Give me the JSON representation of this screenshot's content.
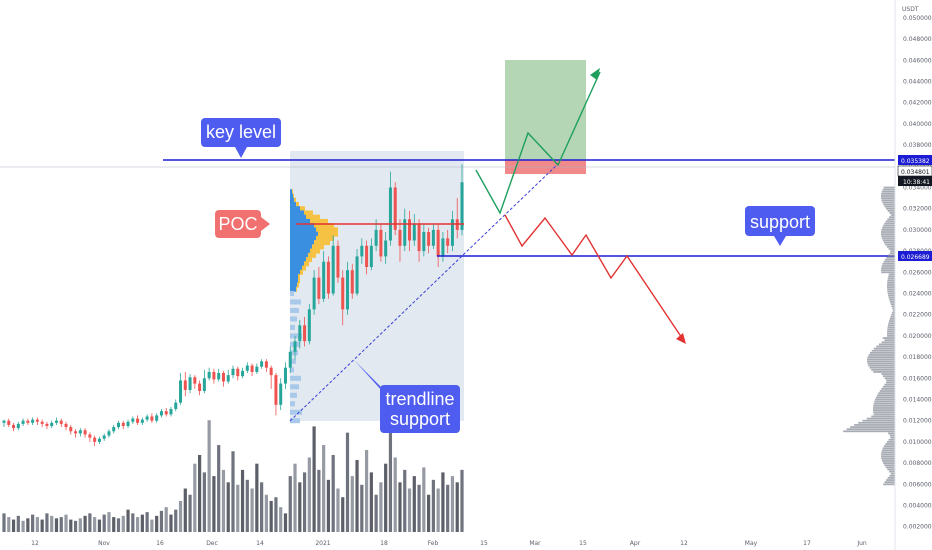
{
  "chart_data": {
    "type": "candlestick",
    "quote_currency": "USDT",
    "x_ticks": [
      "12",
      "Nov",
      "16",
      "Dec",
      "14",
      "2021",
      "18",
      "Feb",
      "15",
      "Mar",
      "15",
      "Apr",
      "12",
      "May",
      "17",
      "Jun"
    ],
    "y_ticks": [
      "0.050000",
      "0.048000",
      "0.046000",
      "0.044000",
      "0.042000",
      "0.040000",
      "0.038000",
      "0.036000",
      "0.034000",
      "0.032000",
      "0.030000",
      "0.028000",
      "0.026000",
      "0.024000",
      "0.022000",
      "0.020000",
      "0.018000",
      "0.016000",
      "0.014000",
      "0.012000",
      "0.010000",
      "0.008000",
      "0.006000",
      "0.004000",
      "0.002000"
    ],
    "ylim": [
      0.0015,
      0.0515
    ],
    "price_labels": {
      "key_level": "0.035382",
      "current_price": "0.034801",
      "countdown": "10:38:41",
      "support": "0.026689"
    },
    "levels": {
      "key_level": 0.035382,
      "support": 0.026689,
      "poc": 0.0294
    },
    "annotations": {
      "key_level": "key level",
      "poc": "POC",
      "support": "support",
      "trendline_line1": "trendline",
      "trendline_line2": "support"
    },
    "candles": [
      [
        0.0118,
        0.012,
        0.0114,
        0.0121
      ],
      [
        0.012,
        0.0116,
        0.0114,
        0.0122
      ],
      [
        0.0116,
        0.0113,
        0.011,
        0.0118
      ],
      [
        0.0113,
        0.0117,
        0.0111,
        0.0119
      ],
      [
        0.0117,
        0.012,
        0.0115,
        0.0122
      ],
      [
        0.012,
        0.0118,
        0.0116,
        0.0122
      ],
      [
        0.0118,
        0.0121,
        0.0116,
        0.0123
      ],
      [
        0.0121,
        0.0119,
        0.0116,
        0.0123
      ],
      [
        0.0119,
        0.0117,
        0.0114,
        0.0121
      ],
      [
        0.0117,
        0.0115,
        0.0112,
        0.0119
      ],
      [
        0.0115,
        0.0118,
        0.0113,
        0.012
      ],
      [
        0.0118,
        0.012,
        0.0116,
        0.0123
      ],
      [
        0.012,
        0.0117,
        0.0114,
        0.0122
      ],
      [
        0.0117,
        0.0114,
        0.0111,
        0.0119
      ],
      [
        0.0114,
        0.011,
        0.0107,
        0.0116
      ],
      [
        0.011,
        0.0108,
        0.0104,
        0.0112
      ],
      [
        0.0108,
        0.0111,
        0.0105,
        0.0113
      ],
      [
        0.0111,
        0.0107,
        0.0104,
        0.0113
      ],
      [
        0.0107,
        0.0104,
        0.01,
        0.0109
      ],
      [
        0.0104,
        0.01,
        0.0096,
        0.0106
      ],
      [
        0.01,
        0.0103,
        0.0098,
        0.0105
      ],
      [
        0.0103,
        0.0106,
        0.0101,
        0.0108
      ],
      [
        0.0106,
        0.011,
        0.0104,
        0.0112
      ],
      [
        0.011,
        0.0114,
        0.0108,
        0.0116
      ],
      [
        0.0114,
        0.0118,
        0.0112,
        0.012
      ],
      [
        0.0118,
        0.0115,
        0.0112,
        0.012
      ],
      [
        0.0115,
        0.0119,
        0.0113,
        0.0121
      ],
      [
        0.0119,
        0.0122,
        0.0117,
        0.0124
      ],
      [
        0.0122,
        0.0118,
        0.0116,
        0.0125
      ],
      [
        0.0118,
        0.0121,
        0.0116,
        0.0123
      ],
      [
        0.0121,
        0.0124,
        0.0119,
        0.0126
      ],
      [
        0.0124,
        0.012,
        0.0118,
        0.0127
      ],
      [
        0.012,
        0.0125,
        0.0118,
        0.0127
      ],
      [
        0.0125,
        0.0129,
        0.0123,
        0.0131
      ],
      [
        0.0129,
        0.0126,
        0.0124,
        0.0132
      ],
      [
        0.0126,
        0.0131,
        0.0124,
        0.0133
      ],
      [
        0.0131,
        0.0137,
        0.0129,
        0.014
      ],
      [
        0.0137,
        0.0158,
        0.0135,
        0.0165
      ],
      [
        0.0158,
        0.0149,
        0.0143,
        0.0166
      ],
      [
        0.0149,
        0.0161,
        0.0146,
        0.0164
      ],
      [
        0.0161,
        0.0155,
        0.015,
        0.0163
      ],
      [
        0.0155,
        0.0148,
        0.0144,
        0.0158
      ],
      [
        0.0148,
        0.016,
        0.0146,
        0.0168
      ],
      [
        0.016,
        0.0166,
        0.0158,
        0.017
      ],
      [
        0.0166,
        0.0159,
        0.0155,
        0.0169
      ],
      [
        0.0159,
        0.0165,
        0.0157,
        0.0169
      ],
      [
        0.0165,
        0.0157,
        0.0152,
        0.0167
      ],
      [
        0.0157,
        0.0163,
        0.0155,
        0.0168
      ],
      [
        0.0163,
        0.0169,
        0.016,
        0.0172
      ],
      [
        0.0169,
        0.0162,
        0.0158,
        0.0171
      ],
      [
        0.0162,
        0.0167,
        0.016,
        0.017
      ],
      [
        0.0167,
        0.0172,
        0.0165,
        0.0175
      ],
      [
        0.0172,
        0.0166,
        0.0162,
        0.0174
      ],
      [
        0.0166,
        0.0171,
        0.0164,
        0.0174
      ],
      [
        0.0171,
        0.0176,
        0.0169,
        0.0178
      ],
      [
        0.0176,
        0.017,
        0.0166,
        0.0178
      ],
      [
        0.017,
        0.0163,
        0.015,
        0.0172
      ],
      [
        0.0163,
        0.0135,
        0.0125,
        0.0165
      ],
      [
        0.0135,
        0.0155,
        0.013,
        0.016
      ],
      [
        0.0155,
        0.017,
        0.015,
        0.0175
      ],
      [
        0.017,
        0.0185,
        0.0165,
        0.019
      ],
      [
        0.0185,
        0.0195,
        0.0178,
        0.02
      ],
      [
        0.0195,
        0.021,
        0.0188,
        0.0215
      ],
      [
        0.021,
        0.0195,
        0.019,
        0.0218
      ],
      [
        0.0195,
        0.0225,
        0.0192,
        0.023
      ],
      [
        0.0225,
        0.0255,
        0.022,
        0.0262
      ],
      [
        0.0255,
        0.0235,
        0.023,
        0.0265
      ],
      [
        0.0235,
        0.027,
        0.0232,
        0.028
      ],
      [
        0.027,
        0.024,
        0.0235,
        0.0275
      ],
      [
        0.024,
        0.0285,
        0.0238,
        0.0295
      ],
      [
        0.0285,
        0.0255,
        0.025,
        0.029
      ],
      [
        0.0255,
        0.0225,
        0.021,
        0.0262
      ],
      [
        0.0225,
        0.0262,
        0.022,
        0.027
      ],
      [
        0.0262,
        0.024,
        0.0235,
        0.0268
      ],
      [
        0.024,
        0.0275,
        0.0238,
        0.0282
      ],
      [
        0.0275,
        0.0285,
        0.0268,
        0.0292
      ],
      [
        0.0285,
        0.0265,
        0.0258,
        0.029
      ],
      [
        0.0265,
        0.0285,
        0.0262,
        0.0292
      ],
      [
        0.0285,
        0.03,
        0.028,
        0.031
      ],
      [
        0.03,
        0.0275,
        0.027,
        0.0305
      ],
      [
        0.0275,
        0.029,
        0.0268,
        0.0298
      ],
      [
        0.029,
        0.034,
        0.0285,
        0.0355
      ],
      [
        0.034,
        0.03,
        0.0295,
        0.0345
      ],
      [
        0.03,
        0.0285,
        0.027,
        0.031
      ],
      [
        0.0285,
        0.031,
        0.028,
        0.032
      ],
      [
        0.031,
        0.029,
        0.028,
        0.0318
      ],
      [
        0.029,
        0.0305,
        0.0285,
        0.0315
      ],
      [
        0.0305,
        0.028,
        0.027,
        0.031
      ],
      [
        0.028,
        0.0298,
        0.0275,
        0.0305
      ],
      [
        0.0298,
        0.0285,
        0.0278,
        0.0302
      ],
      [
        0.0285,
        0.03,
        0.0282,
        0.0305
      ],
      [
        0.03,
        0.0275,
        0.0265,
        0.0305
      ],
      [
        0.0275,
        0.0292,
        0.027,
        0.0298
      ],
      [
        0.0292,
        0.0285,
        0.0278,
        0.03
      ],
      [
        0.0285,
        0.031,
        0.028,
        0.0318
      ],
      [
        0.031,
        0.03,
        0.0292,
        0.033
      ],
      [
        0.03,
        0.0345,
        0.0295,
        0.0362
      ]
    ],
    "volumes": [
      15,
      12,
      10,
      13,
      9,
      11,
      14,
      12,
      10,
      15,
      13,
      11,
      12,
      14,
      10,
      9,
      11,
      13,
      15,
      12,
      10,
      14,
      16,
      12,
      11,
      13,
      18,
      15,
      12,
      14,
      16,
      10,
      13,
      17,
      20,
      14,
      18,
      25,
      35,
      30,
      55,
      62,
      48,
      90,
      45,
      70,
      50,
      40,
      65,
      38,
      50,
      42,
      35,
      55,
      40,
      30,
      25,
      28,
      20,
      15,
      45,
      55,
      40,
      48,
      60,
      85,
      50,
      70,
      42,
      62,
      35,
      28,
      80,
      45,
      58,
      38,
      66,
      48,
      30,
      40,
      55,
      95,
      60,
      40,
      50,
      35,
      45,
      38,
      52,
      30,
      42,
      35,
      48,
      38,
      45,
      40,
      50
    ],
    "volume_profile": {
      "rows": [
        0.028,
        0.026,
        0.024,
        0.022,
        0.02,
        0.018,
        0.016,
        0.014,
        0.012,
        0.01,
        0.008
      ],
      "widths": [
        2,
        3,
        6,
        4,
        2,
        3,
        5,
        8,
        14,
        9,
        4
      ]
    }
  },
  "colors": {
    "up": "#26a69a",
    "down": "#ef5350",
    "callout_blue": "#4f5cf0",
    "callout_red": "#f07170",
    "level_blue": "#1c1cd4",
    "target_green": "#b5d6b5",
    "stop_red": "#f08a8a",
    "range_box": "#dde5ee",
    "vp_blue": "#3b8fe0",
    "vp_yellow": "#f5c244",
    "vp_value_blue": "#a9c9ea",
    "path_green": "#1e9f5e",
    "path_red": "#e23232"
  }
}
